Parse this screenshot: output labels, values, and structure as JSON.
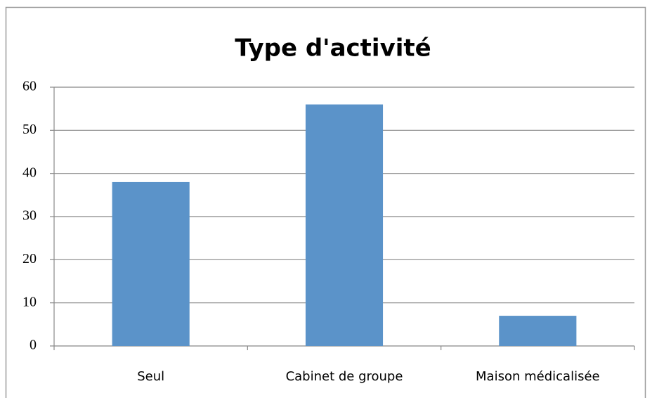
{
  "chart_data": {
    "type": "bar",
    "title": "Type d'activité",
    "categories": [
      "Seul",
      "Cabinet de groupe",
      "Maison médicalisée"
    ],
    "values": [
      38,
      56,
      7
    ],
    "color": "#5b93c9",
    "ylim": [
      0,
      60
    ],
    "yticks": [
      0,
      10,
      20,
      30,
      40,
      50,
      60
    ],
    "grid": true
  }
}
